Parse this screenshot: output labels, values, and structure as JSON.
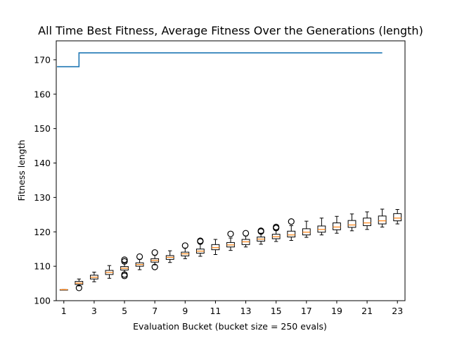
{
  "chart_data": {
    "type": "box",
    "title": "All Time Best Fitness, Average Fitness Over the Generations (length)",
    "xlabel": "Evaluation Bucket (bucket size = 250 evals)",
    "ylabel": "Fitness length",
    "xlim": [
      0.5,
      23.5
    ],
    "ylim": [
      100,
      175.5
    ],
    "xticks": [
      1,
      3,
      5,
      7,
      9,
      11,
      13,
      15,
      17,
      19,
      21,
      23
    ],
    "yticks": [
      100,
      110,
      120,
      130,
      140,
      150,
      160,
      170
    ],
    "grid": false,
    "best_fitness_series": {
      "style": "step",
      "color": "#1f77b4",
      "x": [
        1,
        2,
        22
      ],
      "y": [
        168,
        172,
        172
      ]
    },
    "boxes": [
      {
        "bucket": 1,
        "whislo": 103.2,
        "q1": 103.2,
        "med": 103.2,
        "q3": 103.2,
        "whishi": 103.2,
        "fliers": []
      },
      {
        "bucket": 2,
        "whislo": 104.3,
        "q1": 104.7,
        "med": 105.1,
        "q3": 105.6,
        "whishi": 106.3,
        "fliers": [
          103.7
        ]
      },
      {
        "bucket": 3,
        "whislo": 105.5,
        "q1": 106.3,
        "med": 106.8,
        "q3": 107.4,
        "whishi": 108.3,
        "fliers": []
      },
      {
        "bucket": 4,
        "whislo": 106.5,
        "q1": 107.6,
        "med": 108.2,
        "q3": 108.8,
        "whishi": 110.2,
        "fliers": []
      },
      {
        "bucket": 5,
        "whislo": 108.0,
        "q1": 108.9,
        "med": 109.4,
        "q3": 109.9,
        "whishi": 111.0,
        "fliers": [
          107.2,
          107.6,
          111.4,
          111.9
        ]
      },
      {
        "bucket": 6,
        "whislo": 109.0,
        "q1": 110.0,
        "med": 110.5,
        "q3": 111.0,
        "whishi": 112.0,
        "fliers": [
          112.8
        ]
      },
      {
        "bucket": 7,
        "whislo": 110.4,
        "q1": 111.2,
        "med": 111.7,
        "q3": 112.2,
        "whishi": 113.2,
        "fliers": [
          109.8,
          114.0
        ]
      },
      {
        "bucket": 8,
        "whislo": 111.1,
        "q1": 112.0,
        "med": 112.6,
        "q3": 113.1,
        "whishi": 114.5,
        "fliers": []
      },
      {
        "bucket": 9,
        "whislo": 112.2,
        "q1": 113.0,
        "med": 113.6,
        "q3": 114.1,
        "whishi": 115.3,
        "fliers": [
          116.0
        ]
      },
      {
        "bucket": 10,
        "whislo": 112.9,
        "q1": 113.8,
        "med": 114.4,
        "q3": 115.0,
        "whishi": 116.5,
        "fliers": [
          117.2,
          117.4
        ]
      },
      {
        "bucket": 11,
        "whislo": 113.4,
        "q1": 114.8,
        "med": 115.4,
        "q3": 116.3,
        "whishi": 117.8,
        "fliers": []
      },
      {
        "bucket": 12,
        "whislo": 114.6,
        "q1": 115.6,
        "med": 116.2,
        "q3": 116.9,
        "whishi": 118.2,
        "fliers": [
          119.4
        ]
      },
      {
        "bucket": 13,
        "whislo": 115.6,
        "q1": 116.3,
        "med": 117.1,
        "q3": 117.8,
        "whishi": 118.8,
        "fliers": [
          119.6
        ]
      },
      {
        "bucket": 14,
        "whislo": 116.4,
        "q1": 117.3,
        "med": 117.9,
        "q3": 118.5,
        "whishi": 119.6,
        "fliers": [
          120.1,
          120.3
        ]
      },
      {
        "bucket": 15,
        "whislo": 117.2,
        "q1": 118.0,
        "med": 118.6,
        "q3": 119.3,
        "whishi": 120.6,
        "fliers": [
          121.1,
          121.4
        ]
      },
      {
        "bucket": 16,
        "whislo": 117.5,
        "q1": 118.5,
        "med": 119.1,
        "q3": 120.2,
        "whishi": 121.8,
        "fliers": [
          123.0
        ]
      },
      {
        "bucket": 17,
        "whislo": 118.4,
        "q1": 119.1,
        "med": 119.9,
        "q3": 120.9,
        "whishi": 123.1,
        "fliers": []
      },
      {
        "bucket": 18,
        "whislo": 119.1,
        "q1": 119.9,
        "med": 120.7,
        "q3": 121.7,
        "whishi": 124.0,
        "fliers": []
      },
      {
        "bucket": 19,
        "whislo": 119.6,
        "q1": 120.6,
        "med": 121.4,
        "q3": 122.6,
        "whishi": 124.5,
        "fliers": []
      },
      {
        "bucket": 20,
        "whislo": 120.3,
        "q1": 121.3,
        "med": 122.0,
        "q3": 123.3,
        "whishi": 125.2,
        "fliers": []
      },
      {
        "bucket": 21,
        "whislo": 120.7,
        "q1": 121.8,
        "med": 122.6,
        "q3": 124.0,
        "whishi": 125.8,
        "fliers": []
      },
      {
        "bucket": 22,
        "whislo": 121.4,
        "q1": 122.3,
        "med": 123.2,
        "q3": 124.6,
        "whishi": 126.6,
        "fliers": []
      },
      {
        "bucket": 23,
        "whislo": 122.3,
        "q1": 123.2,
        "med": 124.0,
        "q3": 125.3,
        "whishi": 126.5,
        "fliers": []
      }
    ],
    "colors": {
      "line": "#1f77b4",
      "median": "#ff7f0e",
      "box": "#000000"
    }
  }
}
